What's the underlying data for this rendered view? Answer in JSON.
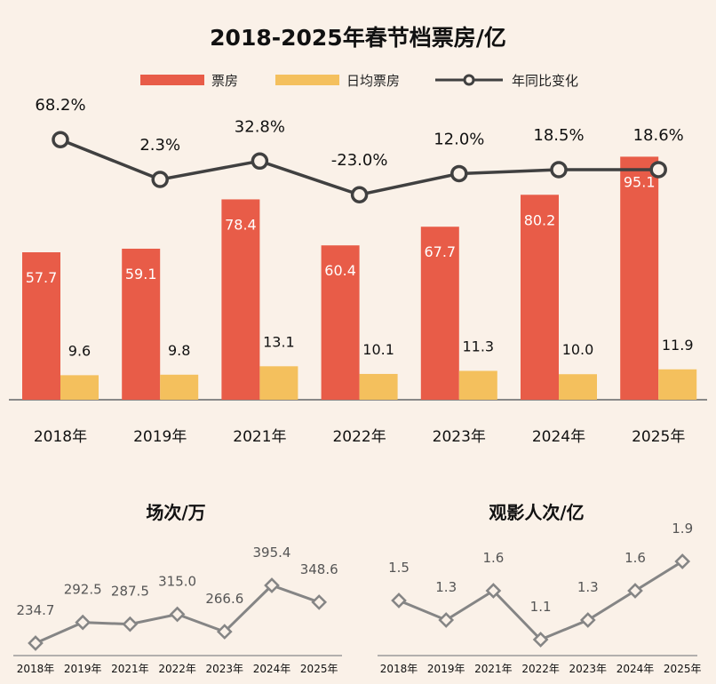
{
  "colors": {
    "background": "#faf1e8",
    "box_office": "#e85c48",
    "avg_box_office": "#f4c05d",
    "yoy_line": "#404040",
    "small_line": "#858585"
  },
  "chart_data": [
    {
      "type": "bar",
      "title": "2018-2025年春节档票房/亿",
      "categories": [
        "2018年",
        "2019年",
        "2021年",
        "2022年",
        "2023年",
        "2024年",
        "2025年"
      ],
      "legend_position": "top",
      "series": [
        {
          "name": "票房",
          "type": "bar",
          "values": [
            57.7,
            59.1,
            78.4,
            60.4,
            67.7,
            80.2,
            95.1
          ],
          "labels": [
            "57.7",
            "59.1",
            "78.4",
            "60.4",
            "67.7",
            "80.2",
            "95.1"
          ]
        },
        {
          "name": "日均票房",
          "type": "bar",
          "values": [
            9.6,
            9.8,
            13.1,
            10.1,
            11.3,
            10.0,
            11.9
          ],
          "labels": [
            "9.6",
            "9.8",
            "13.1",
            "10.1",
            "11.3",
            "10.0",
            "11.9"
          ]
        },
        {
          "name": "年同比变化",
          "type": "line",
          "unit": "%",
          "values": [
            68.2,
            2.3,
            32.8,
            -23.0,
            12.0,
            18.5,
            18.6
          ],
          "labels": [
            "68.2%",
            "2.3%",
            "32.8%",
            "-23.0%",
            "12.0%",
            "18.5%",
            "18.6%"
          ]
        }
      ],
      "grid": false
    },
    {
      "type": "line",
      "title": "场次/万",
      "categories": [
        "2018年",
        "2019年",
        "2021年",
        "2022年",
        "2023年",
        "2024年",
        "2025年"
      ],
      "values": [
        234.7,
        292.5,
        287.5,
        315.0,
        266.6,
        395.4,
        348.6
      ],
      "labels": [
        "234.7",
        "292.5",
        "287.5",
        "315.0",
        "266.6",
        "395.4",
        "348.6"
      ],
      "grid": false
    },
    {
      "type": "line",
      "title": "观影人次/亿",
      "categories": [
        "2018年",
        "2019年",
        "2021年",
        "2022年",
        "2023年",
        "2024年",
        "2025年"
      ],
      "values": [
        1.5,
        1.3,
        1.6,
        1.1,
        1.3,
        1.6,
        1.9
      ],
      "labels": [
        "1.5",
        "1.3",
        "1.6",
        "1.1",
        "1.3",
        "1.6",
        "1.9"
      ],
      "grid": false
    }
  ]
}
